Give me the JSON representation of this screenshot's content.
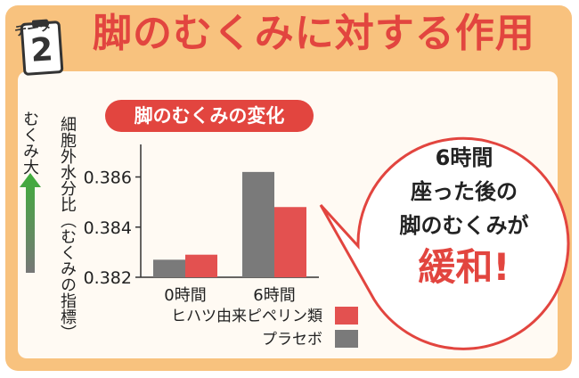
{
  "tag": {
    "label": "データ",
    "number": "2"
  },
  "title": "脚のむくみに対する作用",
  "chart_data": {
    "type": "bar",
    "title": "脚のむくみの変化",
    "ylabel": "細胞外水分比（むくみの指標）",
    "arrow_label": "むくみ大",
    "categories": [
      "0時間",
      "6時間"
    ],
    "series": [
      {
        "name": "プラセボ",
        "color": "#7a7a7a",
        "values": [
          0.3827,
          0.3862
        ]
      },
      {
        "name": "ヒハツ由来ピペリン類",
        "color": "#e35150",
        "values": [
          0.3829,
          0.3848
        ]
      }
    ],
    "yticks": [
      "0.386",
      "0.384",
      "0.382"
    ],
    "ylim": [
      0.382,
      0.3868
    ],
    "grid": false
  },
  "legend": [
    {
      "label": "ヒハツ由来ピペリン類",
      "color": "#e35150"
    },
    {
      "label": "プラセボ",
      "color": "#7a7a7a"
    }
  ],
  "callout": {
    "line1": "6時間",
    "line2": "座った後の",
    "line3": "脚のむくみが",
    "emphasis": "緩和!"
  },
  "colors": {
    "frame": "#f8c27e",
    "accent": "#e2453f",
    "placebo": "#7a7a7a",
    "piperine": "#e35150"
  }
}
